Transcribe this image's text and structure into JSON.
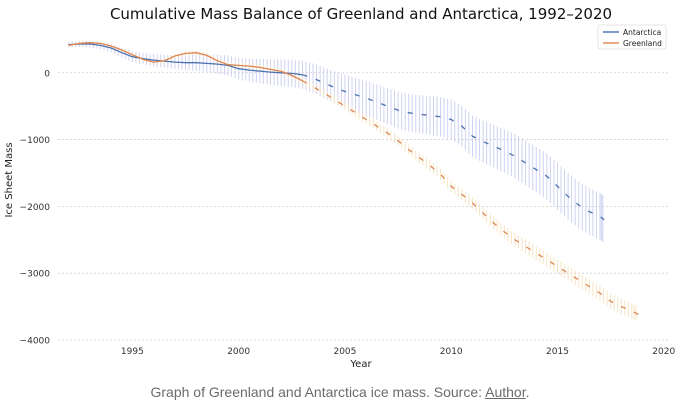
{
  "chart_data": {
    "type": "line",
    "title": "Cumulative Mass Balance of Greenland and Antarctica, 1992–2020",
    "xlabel": "Year",
    "ylabel": "Ice Sheet Mass",
    "xlim": [
      1991.5,
      2020.2
    ],
    "ylim": [
      -4000,
      580
    ],
    "x_ticks": [
      1995,
      2000,
      2005,
      2010,
      2015,
      2020
    ],
    "y_ticks": [
      0,
      -1000,
      -2000,
      -3000,
      -4000
    ],
    "x_tick_labels": [
      "1995",
      "2000",
      "2005",
      "2010",
      "2015",
      "2020"
    ],
    "y_tick_labels": [
      "0",
      "−1000",
      "−2000",
      "−3000",
      "−4000"
    ],
    "grid": "horizontal dashed",
    "legend_position": "top-right",
    "series": [
      {
        "name": "Antarctica",
        "color": "#4c72b0",
        "band_color": "#c9cdf2",
        "x": [
          1992.0,
          1992.5,
          1993.0,
          1993.5,
          1994.0,
          1994.5,
          1995.0,
          1995.5,
          1996.0,
          1996.5,
          1997.0,
          1997.5,
          1998.0,
          1998.5,
          1999.0,
          1999.5,
          2000.0,
          2000.5,
          2001.0,
          2001.5,
          2002.0,
          2002.5,
          2003.0,
          2003.5,
          2004.0,
          2004.5,
          2005.0,
          2005.5,
          2006.0,
          2006.5,
          2007.0,
          2007.5,
          2008.0,
          2008.5,
          2009.0,
          2009.5,
          2010.0,
          2010.5,
          2011.0,
          2011.5,
          2012.0,
          2012.5,
          2013.0,
          2013.5,
          2014.0,
          2014.5,
          2015.0,
          2015.5,
          2016.0,
          2016.5,
          2017.0,
          2017.2
        ],
        "y": [
          420,
          430,
          430,
          410,
          370,
          300,
          240,
          210,
          190,
          175,
          160,
          150,
          150,
          140,
          130,
          110,
          60,
          40,
          25,
          10,
          0,
          -10,
          -30,
          -80,
          -150,
          -220,
          -280,
          -330,
          -380,
          -440,
          -500,
          -560,
          -600,
          -620,
          -640,
          -660,
          -700,
          -800,
          -950,
          -1030,
          -1100,
          -1170,
          -1250,
          -1350,
          -1450,
          -1550,
          -1700,
          -1850,
          -1980,
          -2080,
          -2150,
          -2200
        ],
        "err": [
          40,
          45,
          50,
          55,
          60,
          70,
          80,
          85,
          90,
          95,
          100,
          110,
          120,
          130,
          140,
          150,
          160,
          170,
          180,
          190,
          200,
          205,
          210,
          220,
          230,
          240,
          250,
          255,
          260,
          265,
          270,
          275,
          280,
          285,
          290,
          295,
          300,
          305,
          310,
          315,
          320,
          325,
          330,
          335,
          340,
          345,
          350,
          350,
          350,
          350,
          350,
          350
        ]
      },
      {
        "name": "Greenland",
        "color": "#dd8452",
        "band_color": "#f7e2bd",
        "x": [
          1992.0,
          1992.5,
          1993.0,
          1993.5,
          1994.0,
          1994.5,
          1995.0,
          1995.5,
          1996.0,
          1996.5,
          1997.0,
          1997.5,
          1998.0,
          1998.5,
          1999.0,
          1999.5,
          2000.0,
          2000.5,
          2001.0,
          2001.5,
          2002.0,
          2002.5,
          2003.0,
          2003.5,
          2004.0,
          2004.5,
          2005.0,
          2005.5,
          2006.0,
          2006.5,
          2007.0,
          2007.5,
          2008.0,
          2008.5,
          2009.0,
          2009.5,
          2010.0,
          2010.5,
          2011.0,
          2011.5,
          2012.0,
          2012.5,
          2013.0,
          2013.5,
          2014.0,
          2014.5,
          2015.0,
          2015.5,
          2016.0,
          2016.5,
          2017.0,
          2017.5,
          2018.0,
          2018.5,
          2018.8
        ],
        "y": [
          410,
          440,
          450,
          440,
          400,
          340,
          270,
          200,
          160,
          180,
          250,
          290,
          300,
          260,
          180,
          120,
          110,
          100,
          80,
          50,
          20,
          -40,
          -120,
          -210,
          -300,
          -400,
          -500,
          -600,
          -700,
          -800,
          -900,
          -1020,
          -1150,
          -1270,
          -1390,
          -1520,
          -1700,
          -1820,
          -1950,
          -2100,
          -2250,
          -2380,
          -2500,
          -2600,
          -2700,
          -2800,
          -2900,
          -3000,
          -3100,
          -3200,
          -3300,
          -3420,
          -3500,
          -3560,
          -3620
        ],
        "err": [
          20,
          20,
          22,
          22,
          25,
          25,
          28,
          28,
          30,
          30,
          32,
          32,
          35,
          35,
          38,
          38,
          40,
          40,
          42,
          42,
          45,
          45,
          48,
          50,
          55,
          58,
          60,
          62,
          65,
          68,
          70,
          72,
          75,
          78,
          80,
          82,
          85,
          88,
          90,
          92,
          95,
          98,
          100,
          102,
          105,
          105,
          108,
          108,
          110,
          110,
          112,
          112,
          115,
          115,
          115
        ]
      }
    ]
  },
  "caption": {
    "text": "Graph of Greenland and Antarctica ice mass. Source: ",
    "link": "Author",
    "end": "."
  }
}
